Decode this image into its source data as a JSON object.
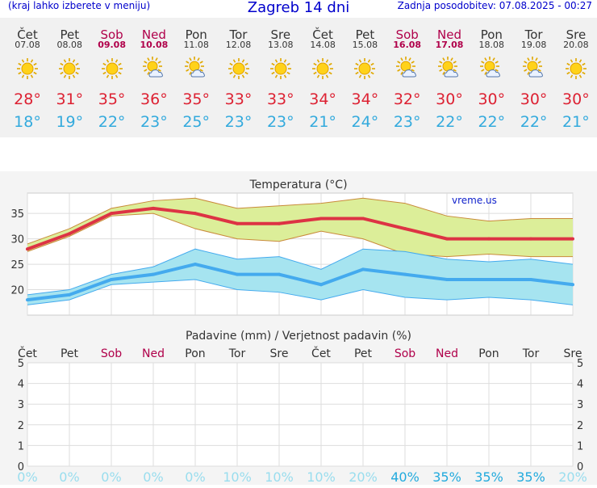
{
  "header": {
    "left_note": "(kraj lahko izberete v meniju)",
    "title": "Zagreb 14 dni",
    "updated": "Zadnja posodobitev: 07.08.2025 - 00:27"
  },
  "days": [
    {
      "name": "Čet",
      "date": "07.08",
      "max": "28°",
      "min": "18°",
      "weekend": false,
      "icon": "sun-icon"
    },
    {
      "name": "Pet",
      "date": "08.08",
      "max": "31°",
      "min": "19°",
      "weekend": false,
      "icon": "sun-icon"
    },
    {
      "name": "Sob",
      "date": "09.08",
      "max": "35°",
      "min": "22°",
      "weekend": true,
      "icon": "sun-icon"
    },
    {
      "name": "Ned",
      "date": "10.08",
      "max": "36°",
      "min": "23°",
      "weekend": true,
      "icon": "sun-cloud-icon"
    },
    {
      "name": "Pon",
      "date": "11.08",
      "max": "35°",
      "min": "25°",
      "weekend": false,
      "icon": "sun-cloud-icon"
    },
    {
      "name": "Tor",
      "date": "12.08",
      "max": "33°",
      "min": "23°",
      "weekend": false,
      "icon": "sun-icon"
    },
    {
      "name": "Sre",
      "date": "13.08",
      "max": "33°",
      "min": "23°",
      "weekend": false,
      "icon": "sun-icon"
    },
    {
      "name": "Čet",
      "date": "14.08",
      "max": "34°",
      "min": "21°",
      "weekend": false,
      "icon": "sun-icon"
    },
    {
      "name": "Pet",
      "date": "15.08",
      "max": "34°",
      "min": "24°",
      "weekend": false,
      "icon": "sun-icon"
    },
    {
      "name": "Sob",
      "date": "16.08",
      "max": "32°",
      "min": "23°",
      "weekend": true,
      "icon": "sun-cloud-icon"
    },
    {
      "name": "Ned",
      "date": "17.08",
      "max": "30°",
      "min": "22°",
      "weekend": true,
      "icon": "sun-cloud-icon"
    },
    {
      "name": "Pon",
      "date": "18.08",
      "max": "30°",
      "min": "22°",
      "weekend": false,
      "icon": "sun-cloud-icon"
    },
    {
      "name": "Tor",
      "date": "19.08",
      "max": "30°",
      "min": "22°",
      "weekend": false,
      "icon": "sun-cloud-icon"
    },
    {
      "name": "Sre",
      "date": "20.08",
      "max": "30°",
      "min": "21°",
      "weekend": false,
      "icon": "sun-icon"
    }
  ],
  "colors": {
    "max": "#dd3344",
    "min": "#44aaee",
    "max_band": "#dcee99",
    "min_band": "#a6e4f0",
    "weekend": "#b0004a",
    "precip_prob": "#22aadd",
    "precip_prob_faded": "#99ddee"
  },
  "chart_data": [
    {
      "type": "line",
      "title": "Temperatura (°C)",
      "watermark": "vreme.us",
      "x": [
        "07.08",
        "08.08",
        "09.08",
        "10.08",
        "11.08",
        "12.08",
        "13.08",
        "14.08",
        "15.08",
        "16.08",
        "17.08",
        "18.08",
        "19.08",
        "20.08"
      ],
      "ylim": [
        15,
        39
      ],
      "yticks": [
        20,
        25,
        30,
        35
      ],
      "grid": true,
      "series": [
        {
          "role": "max",
          "values": [
            28,
            31,
            35,
            36,
            35,
            33,
            33,
            34,
            34,
            32,
            30,
            30,
            30,
            30
          ]
        },
        {
          "role": "max_upper",
          "values": [
            29,
            32,
            36,
            37.5,
            38,
            36,
            36.5,
            37,
            38,
            37,
            34.5,
            33.5,
            34,
            34
          ]
        },
        {
          "role": "max_lower",
          "values": [
            27.5,
            30.5,
            34.5,
            35,
            32,
            30,
            29.5,
            31.5,
            30,
            27,
            26.5,
            27,
            26.5,
            26.5
          ]
        },
        {
          "role": "min",
          "values": [
            18,
            19,
            22,
            23,
            25,
            23,
            23,
            21,
            24,
            23,
            22,
            22,
            22,
            21
          ]
        },
        {
          "role": "min_upper",
          "values": [
            19,
            20,
            23,
            24.5,
            28,
            26,
            26.5,
            24,
            28,
            27.5,
            26,
            25.5,
            26,
            25
          ]
        },
        {
          "role": "min_lower",
          "values": [
            17,
            18,
            21,
            21.5,
            22,
            20,
            19.5,
            18,
            20,
            18.5,
            18,
            18.5,
            18,
            17
          ]
        }
      ]
    },
    {
      "type": "bar",
      "title": "Padavine (mm) / Verjetnost padavin (%)",
      "categories": [
        "Čet",
        "Pet",
        "Sob",
        "Ned",
        "Pon",
        "Tor",
        "Sre",
        "Čet",
        "Pet",
        "Sob",
        "Ned",
        "Pon",
        "Tor",
        "Sre"
      ],
      "weekend": [
        false,
        false,
        true,
        true,
        false,
        false,
        false,
        false,
        false,
        true,
        true,
        false,
        false,
        false
      ],
      "precip_mm": [
        0,
        0,
        0,
        0,
        0,
        0,
        0,
        0,
        0,
        0,
        0,
        0,
        0,
        0
      ],
      "probability": [
        "0%",
        "0%",
        "0%",
        "0%",
        "0%",
        "10%",
        "10%",
        "10%",
        "20%",
        "40%",
        "35%",
        "35%",
        "35%",
        "20%"
      ],
      "probability_strong": [
        false,
        false,
        false,
        false,
        false,
        false,
        false,
        false,
        false,
        true,
        true,
        true,
        true,
        false
      ],
      "ylim": [
        0,
        5
      ],
      "yticks": [
        "0",
        "1",
        "2",
        "3",
        "4",
        "5"
      ],
      "grid": true
    }
  ]
}
